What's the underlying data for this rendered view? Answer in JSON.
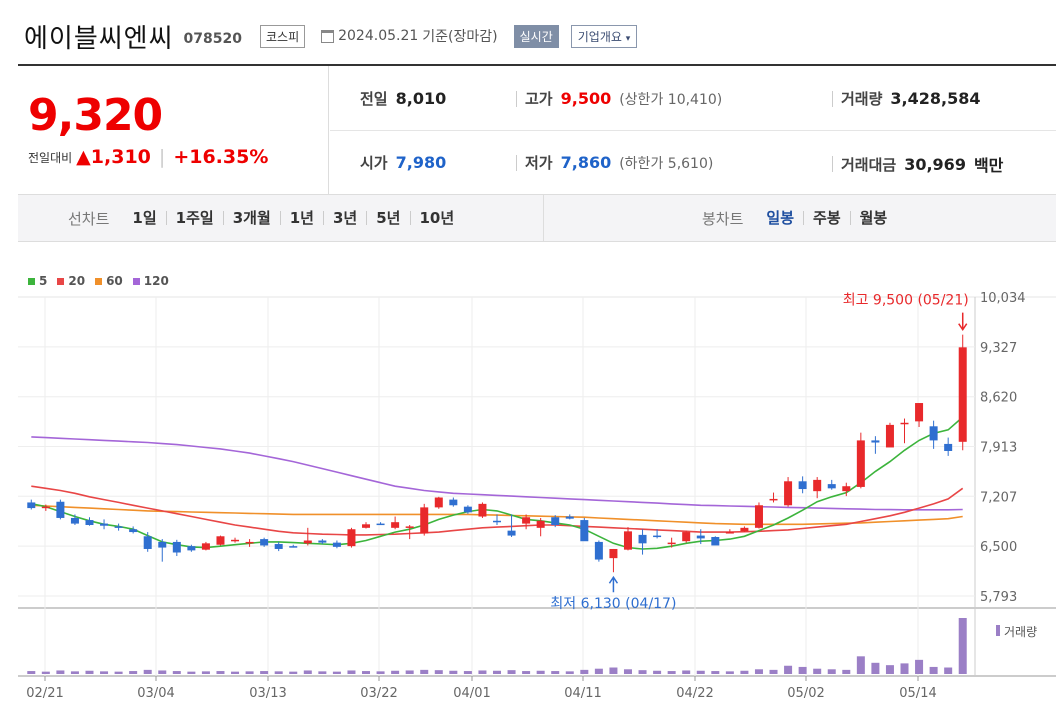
{
  "header": {
    "title": "에이블씨엔씨",
    "code": "078520",
    "market": "코스피",
    "date": "2024.05.21",
    "basis": "기준(장마감)",
    "realtime": "실시간",
    "company": "기업개요"
  },
  "price": {
    "current": "9,320",
    "change_label": "전일대비",
    "change": "1,310",
    "percent": "+16.35%"
  },
  "stats": {
    "prev_label": "전일",
    "prev": "8,010",
    "high_label": "고가",
    "high": "9,500",
    "upper_label": "(상한가",
    "upper": "10,410)",
    "volume_label": "거래량",
    "volume": "3,428,584",
    "open_label": "시가",
    "open": "7,980",
    "low_label": "저가",
    "low": "7,860",
    "lower_label": "(하한가",
    "lower": "5,610)",
    "amount_label": "거래대금",
    "amount": "30,969",
    "amount_unit": "백만"
  },
  "tabs": {
    "line_label": "선차트",
    "line_items": [
      "1일",
      "1주일",
      "3개월",
      "1년",
      "3년",
      "5년",
      "10년"
    ],
    "candle_label": "봉차트",
    "candle_items": [
      "일봉",
      "주봉",
      "월봉"
    ],
    "candle_selected": 0
  },
  "colors": {
    "up": "#e8292b",
    "down": "#2f6fd0",
    "ma5": "#3cb43c",
    "ma20": "#e84646",
    "ma60": "#f0902a",
    "ma120": "#a466d8",
    "volume": "#9b7fc6"
  },
  "chart_data": {
    "type": "candlestick",
    "legend": [
      "5",
      "20",
      "60",
      "120"
    ],
    "y_ticks": [
      "10,034",
      "9,327",
      "8,620",
      "7,913",
      "7,207",
      "6,500",
      "5,793"
    ],
    "ylim": [
      5793,
      10034
    ],
    "x_ticks": [
      "02/21",
      "03/04",
      "03/13",
      "03/22",
      "04/01",
      "04/11",
      "04/22",
      "05/02",
      "05/14"
    ],
    "high_note": "최고 9,500 (05/21)",
    "low_note": "최저 6,130 (04/17)",
    "volume_label": "거래량",
    "candles": [
      [
        7120,
        7160,
        7020,
        7040
      ],
      [
        7050,
        7090,
        7000,
        7060
      ],
      [
        7130,
        7160,
        6880,
        6900
      ],
      [
        6900,
        6950,
        6800,
        6820
      ],
      [
        6870,
        6910,
        6790,
        6800
      ],
      [
        6820,
        6880,
        6740,
        6790
      ],
      [
        6780,
        6820,
        6720,
        6760
      ],
      [
        6740,
        6780,
        6680,
        6700
      ],
      [
        6640,
        6700,
        6420,
        6460
      ],
      [
        6560,
        6600,
        6280,
        6480
      ],
      [
        6560,
        6590,
        6360,
        6410
      ],
      [
        6500,
        6520,
        6420,
        6440
      ],
      [
        6450,
        6560,
        6440,
        6540
      ],
      [
        6520,
        6650,
        6510,
        6640
      ],
      [
        6580,
        6620,
        6550,
        6590
      ],
      [
        6540,
        6600,
        6490,
        6560
      ],
      [
        6600,
        6620,
        6490,
        6510
      ],
      [
        6530,
        6560,
        6430,
        6460
      ],
      [
        6500,
        6520,
        6480,
        6490
      ],
      [
        6540,
        6760,
        6510,
        6580
      ],
      [
        6580,
        6600,
        6530,
        6550
      ],
      [
        6550,
        6580,
        6470,
        6490
      ],
      [
        6500,
        6760,
        6480,
        6740
      ],
      [
        6760,
        6840,
        6750,
        6810
      ],
      [
        6820,
        6840,
        6800,
        6810
      ],
      [
        6760,
        6920,
        6740,
        6840
      ],
      [
        6760,
        6800,
        6600,
        6780
      ],
      [
        6680,
        7100,
        6650,
        7050
      ],
      [
        7050,
        7200,
        7030,
        7190
      ],
      [
        7160,
        7190,
        7060,
        7080
      ],
      [
        7060,
        7080,
        6960,
        6980
      ],
      [
        6920,
        7120,
        6900,
        7100
      ],
      [
        6860,
        6950,
        6800,
        6840
      ],
      [
        6720,
        6950,
        6630,
        6650
      ],
      [
        6820,
        6950,
        6740,
        6910
      ],
      [
        6760,
        6900,
        6640,
        6860
      ],
      [
        6910,
        6940,
        6770,
        6800
      ],
      [
        6920,
        6950,
        6880,
        6890
      ],
      [
        6870,
        6900,
        6580,
        6570
      ],
      [
        6560,
        6580,
        6280,
        6310
      ],
      [
        6330,
        6460,
        6130,
        6460
      ],
      [
        6450,
        6770,
        6440,
        6710
      ],
      [
        6660,
        6740,
        6380,
        6540
      ],
      [
        6650,
        6740,
        6610,
        6630
      ],
      [
        6540,
        6620,
        6480,
        6550
      ],
      [
        6570,
        6720,
        6550,
        6700
      ],
      [
        6650,
        6740,
        6530,
        6610
      ],
      [
        6630,
        6640,
        6520,
        6510
      ],
      [
        6690,
        6740,
        6680,
        6700
      ],
      [
        6710,
        6780,
        6700,
        6760
      ],
      [
        6760,
        7120,
        6750,
        7080
      ],
      [
        7170,
        7260,
        7120,
        7170
      ],
      [
        7080,
        7480,
        7060,
        7420
      ],
      [
        7420,
        7490,
        7250,
        7310
      ],
      [
        7280,
        7480,
        7180,
        7440
      ],
      [
        7380,
        7440,
        7300,
        7320
      ],
      [
        7280,
        7400,
        7210,
        7350
      ],
      [
        7340,
        8110,
        7320,
        8000
      ],
      [
        8000,
        8060,
        7810,
        7970
      ],
      [
        7900,
        8250,
        7910,
        8220
      ],
      [
        8230,
        8310,
        7960,
        8250
      ],
      [
        8270,
        8530,
        8190,
        8530
      ],
      [
        8200,
        8280,
        7880,
        8000
      ],
      [
        7950,
        8040,
        7780,
        7850
      ],
      [
        7980,
        9500,
        7860,
        9320
      ]
    ],
    "ma5": [
      7104,
      7060,
      6990,
      6920,
      6860,
      6810,
      6780,
      6740,
      6650,
      6560,
      6520,
      6490,
      6480,
      6500,
      6520,
      6540,
      6560,
      6560,
      6550,
      6540,
      6530,
      6520,
      6540,
      6580,
      6640,
      6700,
      6740,
      6800,
      6880,
      6940,
      6990,
      7020,
      7000,
      6940,
      6880,
      6860,
      6830,
      6800,
      6740,
      6640,
      6540,
      6480,
      6460,
      6470,
      6500,
      6540,
      6570,
      6580,
      6600,
      6640,
      6720,
      6800,
      6900,
      7010,
      7130,
      7200,
      7260,
      7400,
      7560,
      7700,
      7860,
      8000,
      8100,
      8150,
      8330
    ],
    "ma20": [
      7350,
      7320,
      7290,
      7250,
      7200,
      7160,
      7120,
      7080,
      7040,
      7000,
      6960,
      6920,
      6880,
      6840,
      6800,
      6770,
      6740,
      6710,
      6690,
      6680,
      6670,
      6665,
      6660,
      6660,
      6665,
      6670,
      6680,
      6690,
      6700,
      6720,
      6740,
      6760,
      6770,
      6780,
      6790,
      6800,
      6800,
      6790,
      6780,
      6770,
      6760,
      6750,
      6740,
      6730,
      6720,
      6710,
      6700,
      6700,
      6700,
      6705,
      6710,
      6720,
      6730,
      6750,
      6770,
      6790,
      6810,
      6850,
      6890,
      6930,
      6980,
      7040,
      7100,
      7170,
      7320
    ],
    "ma60": [
      7080,
      7070,
      7060,
      7050,
      7040,
      7030,
      7020,
      7010,
      7000,
      6995,
      6990,
      6985,
      6980,
      6975,
      6970,
      6965,
      6960,
      6955,
      6950,
      6950,
      6950,
      6950,
      6950,
      6950,
      6950,
      6950,
      6950,
      6950,
      6950,
      6950,
      6950,
      6945,
      6940,
      6935,
      6930,
      6925,
      6920,
      6915,
      6910,
      6900,
      6890,
      6880,
      6870,
      6860,
      6850,
      6840,
      6830,
      6820,
      6815,
      6810,
      6810,
      6810,
      6810,
      6810,
      6815,
      6820,
      6825,
      6830,
      6840,
      6850,
      6860,
      6870,
      6880,
      6890,
      6920
    ],
    "ma120": [
      8050,
      8040,
      8030,
      8020,
      8010,
      8000,
      7990,
      7980,
      7970,
      7955,
      7940,
      7920,
      7900,
      7880,
      7850,
      7820,
      7780,
      7740,
      7700,
      7650,
      7600,
      7550,
      7500,
      7450,
      7400,
      7350,
      7320,
      7290,
      7270,
      7250,
      7240,
      7230,
      7220,
      7210,
      7200,
      7190,
      7180,
      7170,
      7160,
      7150,
      7140,
      7130,
      7120,
      7110,
      7100,
      7090,
      7080,
      7075,
      7070,
      7065,
      7060,
      7055,
      7050,
      7045,
      7040,
      7035,
      7030,
      7025,
      7020,
      7018,
      7016,
      7015,
      7015,
      7015,
      7020
    ],
    "volume": [
      10,
      8,
      12,
      9,
      11,
      9,
      8,
      10,
      14,
      12,
      10,
      8,
      9,
      10,
      8,
      9,
      10,
      9,
      8,
      12,
      9,
      8,
      12,
      10,
      9,
      11,
      12,
      14,
      13,
      11,
      10,
      12,
      11,
      13,
      10,
      11,
      10,
      9,
      14,
      18,
      22,
      16,
      13,
      11,
      10,
      12,
      11,
      10,
      9,
      11,
      16,
      14,
      28,
      24,
      18,
      16,
      14,
      60,
      38,
      30,
      36,
      48,
      24,
      22,
      190
    ]
  }
}
